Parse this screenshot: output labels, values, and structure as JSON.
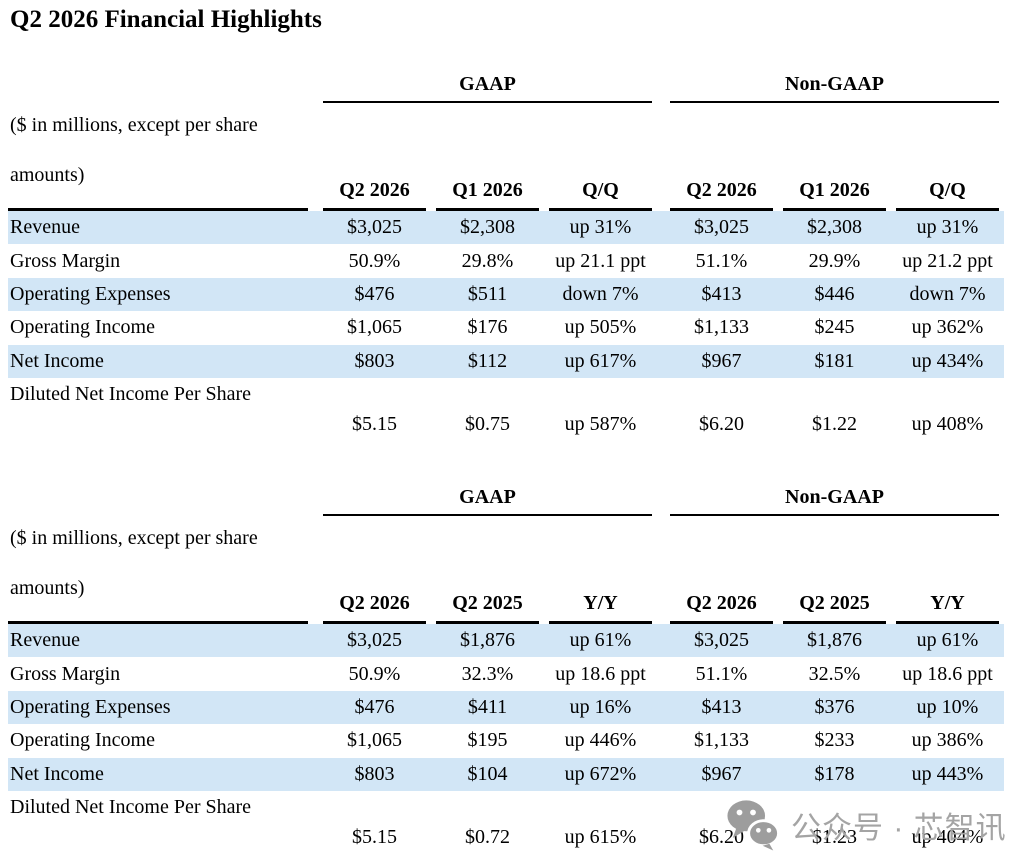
{
  "title": "Q2 2026 Financial Highlights",
  "note_line1": "($ in millions, except per share",
  "note_line2": "amounts)",
  "colors": {
    "stripe": "#d2e6f6",
    "rule": "#000000",
    "watermark_gray": "#a4a4a4",
    "watermark_icon_gray": "#9d9d9d"
  },
  "watermark": {
    "icon": "wechat-icon",
    "text": "公众号 · 芯智讯"
  },
  "tables": [
    {
      "group_headers": [
        "GAAP",
        "Non-GAAP"
      ],
      "columns": [
        "Q2 2026",
        "Q1 2026",
        "Q/Q",
        "Q2 2026",
        "Q1 2026",
        "Q/Q"
      ],
      "rows": [
        {
          "label": "Revenue",
          "values": [
            "$3,025",
            "$2,308",
            "up 31%",
            "$3,025",
            "$2,308",
            "up 31%"
          ],
          "highlight": true
        },
        {
          "label": "Gross Margin",
          "values": [
            "50.9%",
            "29.8%",
            "up 21.1 ppt",
            "51.1%",
            "29.9%",
            "up 21.2 ppt"
          ],
          "highlight": false
        },
        {
          "label": "Operating Expenses",
          "values": [
            "$476",
            "$511",
            "down 7%",
            "$413",
            "$446",
            "down 7%"
          ],
          "highlight": true
        },
        {
          "label": "Operating Income",
          "values": [
            "$1,065",
            "$176",
            "up 505%",
            "$1,133",
            "$245",
            "up 362%"
          ],
          "highlight": false
        },
        {
          "label": "Net Income",
          "values": [
            "$803",
            "$112",
            "up 617%",
            "$967",
            "$181",
            "up 434%"
          ],
          "highlight": true
        },
        {
          "label": "Diluted Net Income Per Share",
          "values": [
            "$5.15",
            "$0.75",
            "up 587%",
            "$6.20",
            "$1.22",
            "up 408%"
          ],
          "highlight": false,
          "tall": true
        }
      ]
    },
    {
      "group_headers": [
        "GAAP",
        "Non-GAAP"
      ],
      "columns": [
        "Q2 2026",
        "Q2 2025",
        "Y/Y",
        "Q2 2026",
        "Q2 2025",
        "Y/Y"
      ],
      "rows": [
        {
          "label": "Revenue",
          "values": [
            "$3,025",
            "$1,876",
            "up 61%",
            "$3,025",
            "$1,876",
            "up 61%"
          ],
          "highlight": true
        },
        {
          "label": "Gross Margin",
          "values": [
            "50.9%",
            "32.3%",
            "up 18.6 ppt",
            "51.1%",
            "32.5%",
            "up 18.6 ppt"
          ],
          "highlight": false
        },
        {
          "label": "Operating Expenses",
          "values": [
            "$476",
            "$411",
            "up 16%",
            "$413",
            "$376",
            "up 10%"
          ],
          "highlight": true
        },
        {
          "label": "Operating Income",
          "values": [
            "$1,065",
            "$195",
            "up 446%",
            "$1,133",
            "$233",
            "up 386%"
          ],
          "highlight": false
        },
        {
          "label": "Net Income",
          "values": [
            "$803",
            "$104",
            "up 672%",
            "$967",
            "$178",
            "up 443%"
          ],
          "highlight": true
        },
        {
          "label": "Diluted Net Income Per Share",
          "values": [
            "$5.15",
            "$0.72",
            "up 615%",
            "$6.20",
            "$1.23",
            "up 404%"
          ],
          "highlight": false,
          "tall": true
        }
      ]
    }
  ]
}
